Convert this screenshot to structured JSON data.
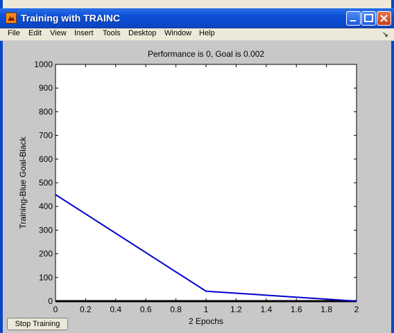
{
  "window": {
    "title": "Training with TRAINC"
  },
  "menu": [
    "File",
    "Edit",
    "View",
    "Insert",
    "Tools",
    "Desktop",
    "Window",
    "Help"
  ],
  "colors": {
    "titlebar": "#0b4fd6",
    "training_line": "#0000cc",
    "goal_line": "#000000",
    "figure_bg": "#c8c8c8"
  },
  "button": {
    "stop": "Stop Training"
  },
  "chart_data": {
    "type": "line",
    "title": "Performance is 0, Goal is 0.002",
    "xlabel": "2 Epochs",
    "ylabel": "Training-Blue  Goal-Black",
    "xlim": [
      0,
      2
    ],
    "ylim": [
      0,
      1000
    ],
    "xticks": [
      "0",
      "0.2",
      "0.4",
      "0.6",
      "0.8",
      "1",
      "1.2",
      "1.4",
      "1.6",
      "1.8",
      "2"
    ],
    "yticks": [
      "0",
      "100",
      "200",
      "300",
      "400",
      "500",
      "600",
      "700",
      "800",
      "900",
      "1000"
    ],
    "series": [
      {
        "name": "Training",
        "color": "#0000cc",
        "x": [
          0,
          1,
          2
        ],
        "y": [
          450,
          42,
          0
        ]
      },
      {
        "name": "Goal",
        "color": "#000000",
        "x": [
          0,
          2
        ],
        "y": [
          0.002,
          0.002
        ]
      }
    ],
    "grid": false
  }
}
